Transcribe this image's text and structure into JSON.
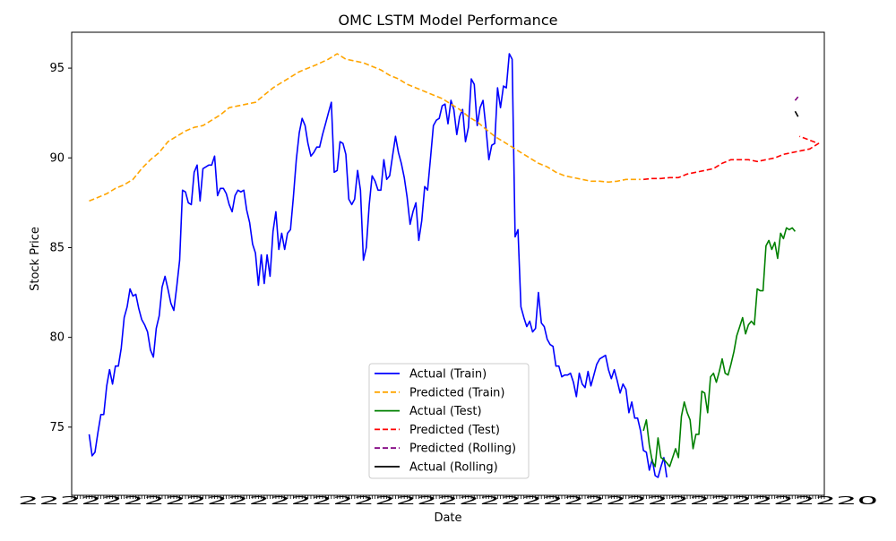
{
  "chart_data": {
    "type": "line",
    "title": "OMC LSTM Model Performance",
    "xlabel": "Date",
    "ylabel": "Stock Price",
    "x_unit": "trading day index",
    "x_ticklabels_note": "Date tick labels are overlapped and illegible",
    "ylim": [
      71.2,
      97.0
    ],
    "yticks": [
      75,
      80,
      85,
      90,
      95
    ],
    "grid": false,
    "legend_position": "lower-center",
    "series": [
      {
        "name": "Actual (Train)",
        "color": "#0000ff",
        "style": "solid",
        "x_start": 0,
        "values": [
          74.6,
          73.4,
          73.6,
          74.7,
          75.7,
          75.7,
          77.3,
          78.2,
          77.4,
          78.4,
          78.4,
          79.4,
          81.1,
          81.7,
          82.7,
          82.3,
          82.4,
          81.6,
          81.0,
          80.7,
          80.3,
          79.3,
          78.9,
          80.5,
          81.2,
          82.8,
          83.4,
          82.7,
          81.9,
          81.5,
          82.8,
          84.3,
          88.2,
          88.1,
          87.5,
          87.4,
          89.2,
          89.6,
          87.6,
          89.4,
          89.5,
          89.6,
          89.6,
          90.1,
          87.9,
          88.3,
          88.3,
          88.0,
          87.4,
          87.0,
          87.9,
          88.2,
          88.1,
          88.2,
          87.1,
          86.4,
          85.2,
          84.7,
          82.9,
          84.6,
          83.0,
          84.6,
          83.4,
          85.9,
          87.0,
          84.9,
          85.8,
          84.9,
          85.8,
          86.0,
          87.8,
          89.9,
          91.4,
          92.2,
          91.8,
          90.8,
          90.1,
          90.3,
          90.6,
          90.6,
          91.3,
          91.9,
          92.5,
          93.1,
          89.2,
          89.3,
          90.9,
          90.8,
          90.2,
          87.7,
          87.4,
          87.7,
          89.3,
          88.2,
          84.3,
          85.0,
          87.4,
          89.0,
          88.7,
          88.2,
          88.2,
          89.9,
          88.8,
          89.0,
          90.1,
          91.2,
          90.3,
          89.7,
          88.9,
          87.8,
          86.3,
          87.0,
          87.5,
          85.4,
          86.5,
          88.4,
          88.2,
          90.0,
          91.8,
          92.1,
          92.2,
          92.9,
          93.0,
          91.9,
          93.2,
          92.7,
          91.3,
          92.3,
          92.7,
          90.9,
          91.7,
          94.4,
          94.1,
          91.8,
          92.8,
          93.2,
          91.7,
          89.9,
          90.7,
          90.8,
          93.9,
          92.8,
          94.0,
          93.9,
          95.8,
          95.5,
          85.6,
          86.0,
          81.7,
          81.1,
          80.6,
          80.9,
          80.3,
          80.5,
          82.5,
          80.8,
          80.6,
          79.9,
          79.6,
          79.5,
          78.4,
          78.4,
          77.8,
          77.9,
          77.9,
          78.0,
          77.5,
          76.7,
          78.0,
          77.4,
          77.2,
          78.1,
          77.3,
          77.9,
          78.5,
          78.8,
          78.9,
          79.0,
          78.2,
          77.7,
          78.2,
          77.6,
          76.9,
          77.4,
          77.1,
          75.8,
          76.4,
          75.5,
          75.5,
          74.8,
          73.7,
          73.6,
          72.6,
          73.2,
          72.3,
          72.2,
          72.8,
          73.3,
          72.2
        ]
      },
      {
        "name": "Predicted (Train)",
        "color": "#ffa500",
        "style": "dashed",
        "x_start": 0,
        "values": [
          87.6,
          87.8,
          88.0,
          88.3,
          88.5,
          88.8,
          89.4,
          89.9,
          90.3,
          90.9,
          91.2,
          91.5,
          91.7,
          91.8,
          92.1,
          92.4,
          92.8,
          92.9,
          93.0,
          93.1,
          93.5,
          93.9,
          94.2,
          94.5,
          94.8,
          95.0,
          95.2,
          95.5,
          95.8,
          95.5,
          95.4,
          95.3,
          95.1,
          94.9,
          94.6,
          94.4,
          94.1,
          93.9,
          93.7,
          93.5,
          93.3,
          93.0,
          92.7,
          92.3,
          92.0,
          91.6,
          91.2,
          90.9,
          90.6,
          90.3,
          90.0,
          89.7,
          89.5,
          89.2,
          89.0,
          88.9,
          88.8,
          88.7,
          88.7,
          88.65,
          88.7,
          88.8,
          88.8
        ],
        "x_positions": [
          0,
          3,
          6,
          9,
          12,
          15,
          18,
          21,
          24,
          27,
          30,
          33,
          36,
          39,
          42,
          45,
          48,
          51,
          54,
          57,
          60,
          63,
          66,
          69,
          72,
          75,
          78,
          82,
          85,
          88,
          91,
          94,
          97,
          100,
          103,
          106,
          109,
          112,
          115,
          118,
          121,
          124,
          127,
          130,
          133,
          136,
          139,
          142,
          145,
          148,
          151,
          154,
          157,
          160,
          163,
          166,
          169,
          172,
          175,
          178,
          181,
          184,
          189
        ]
      },
      {
        "name": "Actual (Test)",
        "color": "#008000",
        "style": "solid",
        "x_start": 190,
        "values": [
          74.8,
          75.4,
          74.0,
          73.1,
          72.8,
          74.4,
          73.3,
          73.2,
          73.0,
          72.8,
          73.3,
          73.8,
          73.3,
          75.6,
          76.4,
          75.8,
          75.4,
          73.8,
          74.6,
          74.6,
          77.0,
          76.9,
          75.8,
          77.8,
          78.0,
          77.5,
          78.1,
          78.8,
          78.0,
          77.9,
          78.5,
          79.2,
          80.1,
          80.6,
          81.1,
          80.2,
          80.7,
          80.9,
          80.7,
          82.7,
          82.6,
          82.6,
          85.1,
          85.4,
          84.9,
          85.3,
          84.4,
          85.8,
          85.5,
          86.1,
          86.0,
          86.1,
          85.9
        ]
      },
      {
        "name": "Predicted (Test)",
        "color": "#ff0000",
        "style": "dashed",
        "x_start": 190,
        "values": [
          88.8,
          88.85,
          88.85,
          88.9,
          88.9,
          89.1,
          89.2,
          89.3,
          89.4,
          89.7,
          89.9,
          89.9,
          89.9,
          89.8,
          89.9,
          90.0,
          90.2,
          90.3,
          90.4,
          90.5,
          90.8,
          91.2
        ],
        "x_positions": [
          190,
          193,
          196,
          199,
          202,
          205,
          208,
          211,
          214,
          217,
          220,
          223,
          226,
          229,
          232,
          235,
          238,
          241,
          244,
          247,
          250,
          243.5
        ]
      },
      {
        "name": "Predicted (Rolling)",
        "color": "#800080",
        "style": "dashed",
        "x_start": 242,
        "values": [
          93.2,
          93.4
        ]
      },
      {
        "name": "Actual (Rolling)",
        "color": "#000000",
        "style": "solid",
        "x_start": 242,
        "values": [
          92.6,
          92.3
        ]
      }
    ]
  }
}
